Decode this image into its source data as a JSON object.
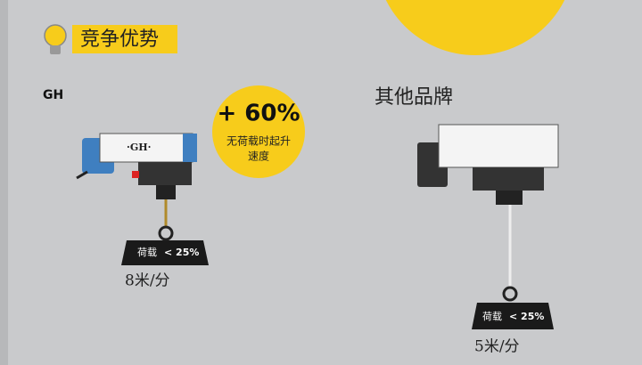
{
  "header": {
    "title": "竞争优势"
  },
  "left": {
    "brand": "GH",
    "hoist_label": "·GH·",
    "badge": {
      "value": "+ 60%",
      "caption_lines": [
        "无荷载时起升",
        "速度"
      ]
    },
    "weight": {
      "label": "荷载",
      "value": "< 25%"
    },
    "speed": "8米/分"
  },
  "right": {
    "brand": "其他品牌",
    "weight": {
      "label": "荷载",
      "value": "< 25%"
    },
    "speed": "5米/分"
  }
}
